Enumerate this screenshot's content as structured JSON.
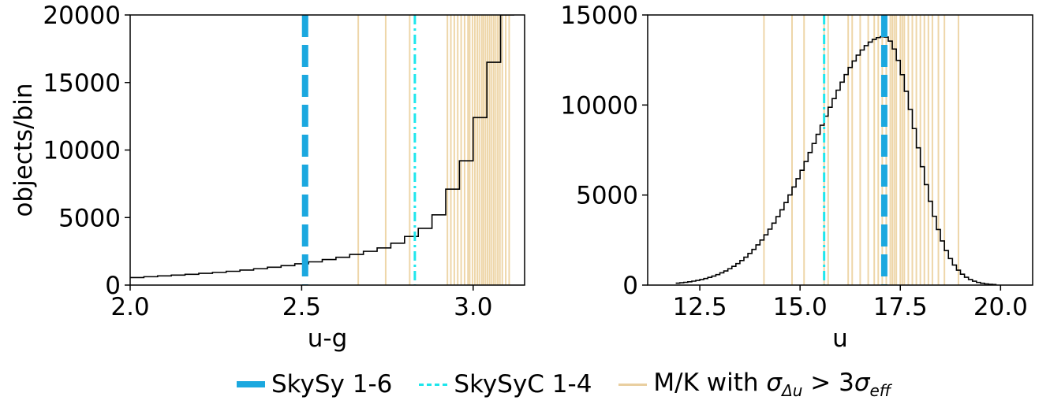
{
  "chart_data": [
    {
      "type": "histogram",
      "xlabel": "u-g",
      "ylabel": "objects/bin",
      "xlim": [
        2.0,
        3.15
      ],
      "ylim": [
        0,
        20000
      ],
      "xticks": [
        2.0,
        2.5,
        3.0
      ],
      "xtick_labels": [
        "2.0",
        "2.5",
        "3.0"
      ],
      "yticks": [
        0,
        5000,
        10000,
        15000,
        20000
      ],
      "ytick_labels": [
        "0",
        "5000",
        "10000",
        "15000",
        "20000"
      ],
      "bin_edges": [
        2.0,
        2.04,
        2.08,
        2.12,
        2.16,
        2.2,
        2.24,
        2.28,
        2.32,
        2.36,
        2.4,
        2.44,
        2.48,
        2.52,
        2.56,
        2.6,
        2.64,
        2.68,
        2.72,
        2.76,
        2.8,
        2.84,
        2.88,
        2.92,
        2.96,
        3.0,
        3.04,
        3.08,
        3.12
      ],
      "counts": [
        560,
        620,
        680,
        740,
        800,
        870,
        940,
        1020,
        1110,
        1210,
        1320,
        1440,
        1580,
        1720,
        1890,
        2060,
        2270,
        2500,
        2750,
        3100,
        3600,
        4200,
        5200,
        7100,
        9200,
        12400,
        16500,
        20000
      ],
      "skysy_x": 2.51,
      "skysyc_x": 2.83,
      "mk_x": [
        2.665,
        2.745,
        2.815,
        2.925,
        2.935,
        2.945,
        2.955,
        2.965,
        2.975,
        2.985,
        2.99,
        2.998,
        3.005,
        3.012,
        3.018,
        3.025,
        3.03,
        3.036,
        3.042,
        3.048,
        3.054,
        3.06,
        3.066,
        3.072,
        3.078,
        3.085,
        3.095,
        3.105
      ]
    },
    {
      "type": "histogram",
      "xlabel": "u",
      "ylabel": "",
      "xlim": [
        11.2,
        20.8
      ],
      "ylim": [
        0,
        15000
      ],
      "xticks": [
        12.5,
        15.0,
        17.5,
        20.0
      ],
      "xtick_labels": [
        "12.5",
        "15.0",
        "17.5",
        "20.0"
      ],
      "yticks": [
        0,
        5000,
        10000,
        15000
      ],
      "ytick_labels": [
        "0",
        "5000",
        "10000",
        "15000"
      ],
      "bin_start": 11.9,
      "bin_width": 0.1,
      "skysy_x": 17.1,
      "skysyc_x": 15.6,
      "mk_x": [
        14.1,
        14.8,
        15.1,
        15.6,
        15.7,
        16.2,
        16.3,
        16.5,
        16.7,
        16.85,
        16.95,
        17.05,
        17.15,
        17.25,
        17.3,
        17.35,
        17.4,
        17.5,
        17.55,
        17.6,
        17.7,
        17.8,
        17.9,
        18.0,
        18.1,
        18.2,
        18.3,
        18.45,
        18.6,
        18.95
      ]
    }
  ],
  "legend": {
    "skysy_label": "SkySy 1-6",
    "skysyc_label": "SkySyC 1-4",
    "mk_label_prefix": "M/K with ",
    "mk_sigma": "σ",
    "mk_sub_delta_u": "Δu",
    "mk_gt": " > 3",
    "mk_sub_eff": "eff"
  },
  "colors": {
    "skysy": "#1ba8df",
    "skysyc": "#1ee6ec",
    "mk": "#d9a441",
    "hist": "#000000"
  }
}
